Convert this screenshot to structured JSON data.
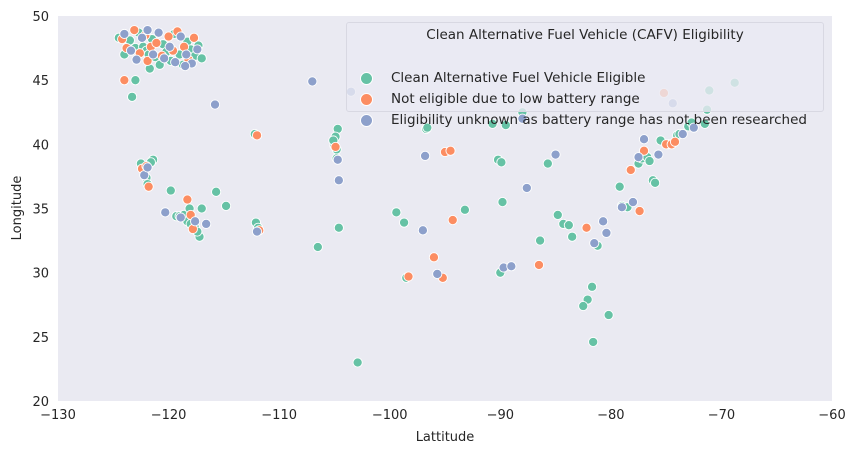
{
  "chart_data": {
    "type": "scatter",
    "xlabel": "Lattitude",
    "ylabel": "Longitude",
    "xlim": [
      -130,
      -60
    ],
    "ylim": [
      20,
      50
    ],
    "xticks": [
      -130,
      -120,
      -110,
      -100,
      -90,
      -80,
      -70,
      -60
    ],
    "yticks": [
      20,
      25,
      30,
      35,
      40,
      45,
      50
    ],
    "xtick_labels": [
      "−130",
      "−120",
      "−110",
      "−100",
      "−90",
      "−80",
      "−70",
      "−60"
    ],
    "ytick_labels": [
      "20",
      "25",
      "30",
      "35",
      "40",
      "45",
      "50"
    ],
    "grid": false,
    "legend_position": "top-right",
    "legend": {
      "title": "Clean Alternative Fuel Vehicle (CAFV) Eligibility",
      "entries": [
        "Clean Alternative Fuel Vehicle Eligible",
        "Not eligible due to low battery range",
        "Eligibility unknown as battery range has not been researched"
      ]
    },
    "series": [
      {
        "name": "Clean Alternative Fuel Vehicle Eligible",
        "color": "#66c2a5",
        "points": [
          [
            -124.5,
            48.3
          ],
          [
            -124.0,
            47.0
          ],
          [
            -123.5,
            48.1
          ],
          [
            -123.0,
            47.5
          ],
          [
            -122.7,
            48.7
          ],
          [
            -122.3,
            47.6
          ],
          [
            -122.0,
            47.3
          ],
          [
            -121.8,
            47.0
          ],
          [
            -121.5,
            48.2
          ],
          [
            -121.2,
            46.8
          ],
          [
            -120.8,
            46.2
          ],
          [
            -120.5,
            47.8
          ],
          [
            -120.2,
            47.2
          ],
          [
            -119.8,
            46.5
          ],
          [
            -119.5,
            48.6
          ],
          [
            -119.0,
            47.0
          ],
          [
            -118.7,
            46.2
          ],
          [
            -118.3,
            48.0
          ],
          [
            -118.0,
            47.4
          ],
          [
            -117.6,
            46.9
          ],
          [
            -117.3,
            47.7
          ],
          [
            -117.0,
            46.7
          ],
          [
            -121.7,
            45.9
          ],
          [
            -123.0,
            45.0
          ],
          [
            -123.3,
            43.7
          ],
          [
            -122.5,
            38.5
          ],
          [
            -122.2,
            38.0
          ],
          [
            -122.0,
            37.4
          ],
          [
            -121.9,
            36.9
          ],
          [
            -121.4,
            38.8
          ],
          [
            -121.6,
            38.6
          ],
          [
            -119.8,
            36.4
          ],
          [
            -119.3,
            34.4
          ],
          [
            -119.0,
            34.4
          ],
          [
            -118.6,
            34.5
          ],
          [
            -118.3,
            34.0
          ],
          [
            -118.0,
            33.8
          ],
          [
            -117.6,
            33.5
          ],
          [
            -117.2,
            32.8
          ],
          [
            -117.4,
            33.2
          ],
          [
            -118.1,
            35.0
          ],
          [
            -117.0,
            35.0
          ],
          [
            -115.7,
            36.3
          ],
          [
            -114.8,
            35.2
          ],
          [
            -112.2,
            40.8
          ],
          [
            -112.1,
            33.9
          ],
          [
            -111.9,
            33.5
          ],
          [
            -106.5,
            32.0
          ],
          [
            -104.7,
            41.2
          ],
          [
            -104.9,
            40.6
          ],
          [
            -105.0,
            39.9
          ],
          [
            -104.8,
            39.6
          ],
          [
            -105.1,
            40.3
          ],
          [
            -104.8,
            38.9
          ],
          [
            -104.6,
            33.5
          ],
          [
            -102.9,
            23.0
          ],
          [
            -99.4,
            34.7
          ],
          [
            -98.7,
            33.9
          ],
          [
            -98.5,
            29.6
          ],
          [
            -96.7,
            41.2
          ],
          [
            -96.6,
            41.3
          ],
          [
            -93.2,
            34.9
          ],
          [
            -90.7,
            41.6
          ],
          [
            -90.2,
            38.8
          ],
          [
            -89.9,
            38.6
          ],
          [
            -90.0,
            30.0
          ],
          [
            -89.8,
            35.5
          ],
          [
            -89.5,
            41.5
          ],
          [
            -88.0,
            42.5
          ],
          [
            -86.4,
            32.5
          ],
          [
            -85.7,
            38.5
          ],
          [
            -84.8,
            34.5
          ],
          [
            -84.3,
            33.8
          ],
          [
            -83.8,
            33.7
          ],
          [
            -83.5,
            32.8
          ],
          [
            -82.1,
            27.9
          ],
          [
            -82.5,
            27.4
          ],
          [
            -81.7,
            28.9
          ],
          [
            -81.6,
            24.6
          ],
          [
            -81.2,
            32.1
          ],
          [
            -80.2,
            26.7
          ],
          [
            -79.2,
            36.7
          ],
          [
            -79.0,
            35.2
          ],
          [
            -78.5,
            35.1
          ],
          [
            -77.5,
            38.5
          ],
          [
            -77.2,
            38.9
          ],
          [
            -76.7,
            39.0
          ],
          [
            -76.5,
            38.7
          ],
          [
            -76.2,
            37.2
          ],
          [
            -76.0,
            37.0
          ],
          [
            -75.5,
            40.3
          ],
          [
            -74.8,
            40.0
          ],
          [
            -74.0,
            40.7
          ],
          [
            -73.8,
            40.8
          ],
          [
            -73.0,
            41.4
          ],
          [
            -72.7,
            41.7
          ],
          [
            -71.5,
            41.6
          ],
          [
            -71.3,
            42.7
          ],
          [
            -71.1,
            44.2
          ],
          [
            -68.8,
            44.8
          ]
        ]
      },
      {
        "name": "Not eligible due to low battery range",
        "color": "#fc8d62",
        "points": [
          [
            -124.2,
            48.2
          ],
          [
            -123.8,
            47.5
          ],
          [
            -123.1,
            48.9
          ],
          [
            -122.6,
            47.1
          ],
          [
            -122.1,
            48.5
          ],
          [
            -121.6,
            47.6
          ],
          [
            -121.1,
            47.9
          ],
          [
            -120.6,
            46.9
          ],
          [
            -120.0,
            48.4
          ],
          [
            -119.6,
            47.3
          ],
          [
            -119.2,
            48.8
          ],
          [
            -118.6,
            47.6
          ],
          [
            -118.2,
            46.6
          ],
          [
            -117.7,
            48.3
          ],
          [
            -121.9,
            46.5
          ],
          [
            -124.0,
            45.0
          ],
          [
            -122.4,
            38.1
          ],
          [
            -122.0,
            38.3
          ],
          [
            -121.8,
            36.7
          ],
          [
            -118.3,
            35.7
          ],
          [
            -118.0,
            34.5
          ],
          [
            -117.8,
            33.4
          ],
          [
            -112.0,
            40.7
          ],
          [
            -111.8,
            33.3
          ],
          [
            -104.9,
            39.8
          ],
          [
            -98.3,
            29.7
          ],
          [
            -96.0,
            31.2
          ],
          [
            -95.2,
            29.6
          ],
          [
            -95.0,
            39.4
          ],
          [
            -94.5,
            39.5
          ],
          [
            -94.3,
            34.1
          ],
          [
            -86.5,
            30.6
          ],
          [
            -82.2,
            33.5
          ],
          [
            -78.2,
            38.0
          ],
          [
            -77.4,
            34.8
          ],
          [
            -77.0,
            39.5
          ],
          [
            -75.2,
            44.0
          ],
          [
            -75.0,
            40.0
          ],
          [
            -74.5,
            40.0
          ],
          [
            -74.2,
            40.2
          ]
        ]
      },
      {
        "name": "Eligibility unknown as battery range has not been researched",
        "color": "#8da0cb",
        "points": [
          [
            -124.0,
            48.6
          ],
          [
            -123.4,
            47.3
          ],
          [
            -122.9,
            46.6
          ],
          [
            -122.4,
            48.3
          ],
          [
            -121.9,
            48.9
          ],
          [
            -121.4,
            47.0
          ],
          [
            -120.9,
            48.7
          ],
          [
            -120.4,
            46.7
          ],
          [
            -119.9,
            47.6
          ],
          [
            -119.4,
            46.4
          ],
          [
            -118.9,
            48.4
          ],
          [
            -118.4,
            47.0
          ],
          [
            -117.9,
            46.3
          ],
          [
            -117.4,
            47.4
          ],
          [
            -118.5,
            46.1
          ],
          [
            -122.2,
            37.6
          ],
          [
            -121.9,
            38.2
          ],
          [
            -120.3,
            34.7
          ],
          [
            -118.9,
            34.3
          ],
          [
            -117.6,
            34.0
          ],
          [
            -116.6,
            33.8
          ],
          [
            -115.8,
            43.1
          ],
          [
            -112.0,
            33.2
          ],
          [
            -107.0,
            44.9
          ],
          [
            -104.7,
            38.8
          ],
          [
            -104.6,
            37.2
          ],
          [
            -103.5,
            44.1
          ],
          [
            -97.0,
            33.3
          ],
          [
            -96.8,
            39.1
          ],
          [
            -95.7,
            29.9
          ],
          [
            -89.7,
            30.4
          ],
          [
            -89.0,
            30.5
          ],
          [
            -88.0,
            42.0
          ],
          [
            -87.6,
            36.6
          ],
          [
            -85.0,
            39.2
          ],
          [
            -81.5,
            32.3
          ],
          [
            -80.7,
            34.0
          ],
          [
            -80.4,
            33.1
          ],
          [
            -79.0,
            35.1
          ],
          [
            -78.0,
            35.5
          ],
          [
            -77.5,
            39.0
          ],
          [
            -77.0,
            40.4
          ],
          [
            -75.7,
            39.2
          ],
          [
            -74.4,
            43.2
          ],
          [
            -73.5,
            40.8
          ],
          [
            -72.5,
            41.3
          ]
        ]
      }
    ]
  }
}
